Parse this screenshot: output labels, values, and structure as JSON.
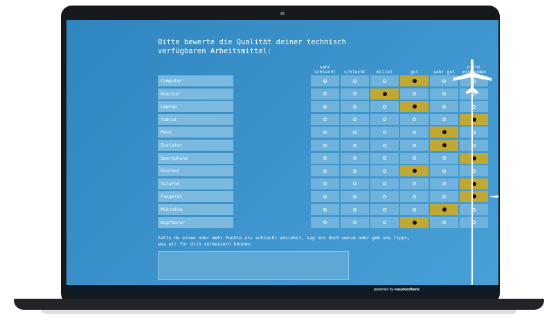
{
  "question": "Bitte bewerte die Qualität deiner technisch verfügbaren Arbeitsmittel:",
  "columns": [
    "sehr schlecht",
    "schlecht",
    "mittel",
    "gut",
    "sehr gut",
    "nicht vorhanden"
  ],
  "rows": [
    {
      "label": "Computer",
      "selected": 3
    },
    {
      "label": "Monitor",
      "selected": 2
    },
    {
      "label": "Laptop",
      "selected": 3
    },
    {
      "label": "Tablet",
      "selected": 5
    },
    {
      "label": "Maus",
      "selected": 4
    },
    {
      "label": "Tastatur",
      "selected": 4
    },
    {
      "label": "Smartphone",
      "selected": 5
    },
    {
      "label": "Drucker",
      "selected": 3
    },
    {
      "label": "Telefon",
      "selected": 5
    },
    {
      "label": "Faxgerät",
      "selected": 5
    },
    {
      "label": "Mikrofon",
      "selected": 4
    },
    {
      "label": "Kopfhörer",
      "selected": 3
    }
  ],
  "hint": "Falls du einen oder mehr Punkte als schlecht ansiehst, sag uns doch warum oder geb uns Tipps, was wir für dich verbessern können:",
  "comment": {
    "value": "",
    "placeholder": ""
  },
  "footer": {
    "prefix": "powered by",
    "brand": "easyfeedback"
  },
  "colors": {
    "screen": "#3a92cb",
    "row": "#6fb3dc",
    "selected": "#c1a831",
    "footer": "#0e1a24"
  }
}
